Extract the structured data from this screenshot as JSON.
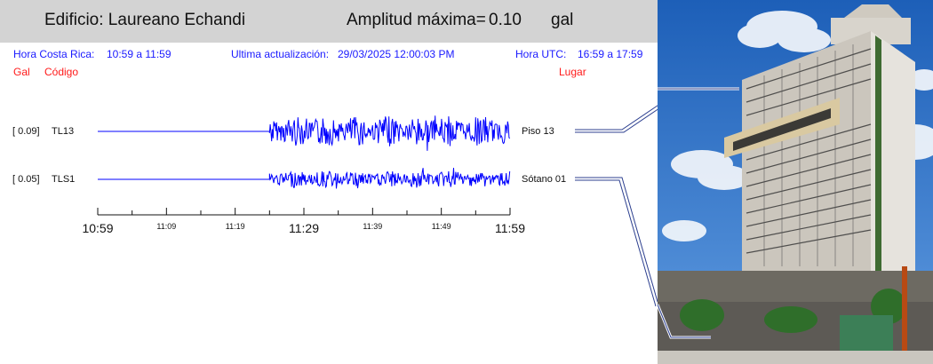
{
  "header": {
    "building": "Edificio: Laureano Echandi",
    "amp_label": "Amplitud máxima=",
    "amp_value": "0.10",
    "amp_unit": "gal"
  },
  "info": {
    "cr_label": "Hora Costa Rica:",
    "cr_range": "10:59 a 11:59",
    "update_label": "Ultima actualización:",
    "update_value": "29/03/2025 12:00:03 PM",
    "utc_label": "Hora UTC:",
    "utc_range": "16:59 a 17:59"
  },
  "columns": {
    "gal": "Gal",
    "code": "Código",
    "place": "Lugar"
  },
  "colors": {
    "trace": "#0000ff",
    "header_bg": "#d3d3d3",
    "label_blue": "#1a1aff",
    "label_red": "#ff1a1a"
  },
  "chart_data": {
    "type": "line",
    "x_ticks_major": [
      "10:59",
      "11:29",
      "11:59"
    ],
    "x_ticks_minor": [
      "11:09",
      "11:19",
      "11:39",
      "11:49"
    ],
    "x_range": [
      "10:59",
      "11:59"
    ],
    "signal_start": "11:24",
    "series": [
      {
        "code": "TL13",
        "gal": "[  0.09]",
        "place": "Piso 13",
        "peak_gal": 0.09
      },
      {
        "code": "TLS1",
        "gal": "[  0.05]",
        "place": "Sótano 01",
        "peak_gal": 0.05
      }
    ]
  },
  "photo": {
    "subject": "building-photo"
  }
}
